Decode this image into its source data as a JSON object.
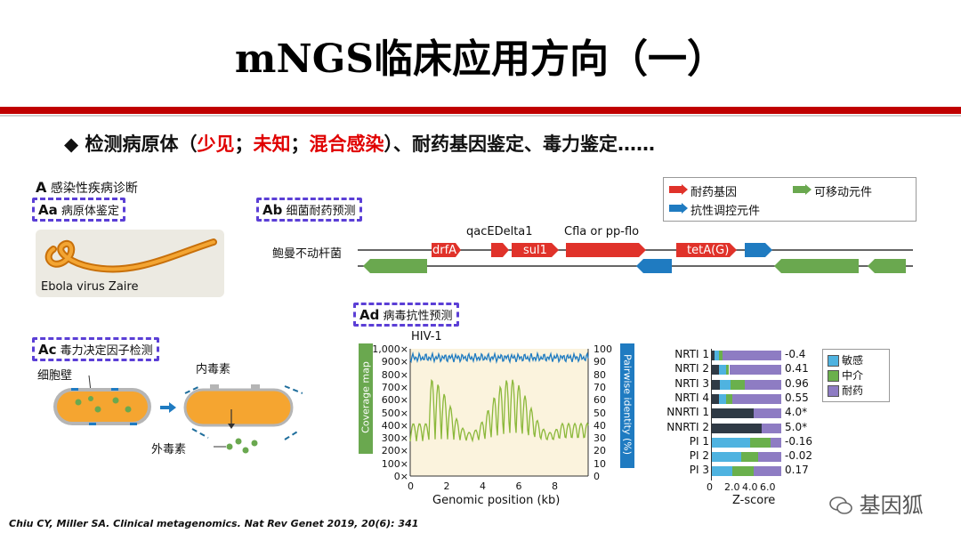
{
  "slide": {
    "title": "mNGS临床应用方向（一）",
    "bullet": {
      "symbol": "◆",
      "prefix": "检测病原体（",
      "rare": "少见",
      "sep1": "；",
      "unknown": "未知",
      "sep2": "；",
      "mixed": "混合感染",
      "suffix": "）、耐药基因鉴定、毒力鉴定……"
    },
    "citation": "Chiu CY, Miller SA. Clinical metagenomics. Nat Rev Genet 2019, 20(6): 341",
    "watermark": "基因狐"
  },
  "panelA": {
    "letter": "A",
    "label": "感染性疾病诊断"
  },
  "panelAa": {
    "letter": "Aa",
    "label": "病原体鉴定",
    "caption": "Ebola virus Zaire"
  },
  "panelAb": {
    "letter": "Ab",
    "label": "细菌耐药预测",
    "organism": "鲍曼不动杆菌",
    "genes": {
      "drfA": "drfA",
      "sul1": "sul1",
      "tetA": "tetA(G)",
      "qac": "qacEDelta1",
      "cfla": "Cfla or pp-flo"
    },
    "legend": [
      {
        "label": "耐药基因",
        "color": "#e0322a"
      },
      {
        "label": "可移动元件",
        "color": "#6aa84f"
      },
      {
        "label": "抗性调控元件",
        "color": "#1f7bc1"
      }
    ]
  },
  "panelAc": {
    "letter": "Ac",
    "label": "毒力决定因子检测",
    "cell_wall": "细胞壁",
    "endotoxin": "内毒素",
    "exotoxin": "外毒素"
  },
  "panelAd": {
    "letter": "Ad",
    "label": "病毒抗性预测",
    "virus": "HIV-1",
    "ylabel_left": "Coverage map",
    "ylabel_right": "Pairwise identity (%)",
    "xlabel": "Genomic position (kb)",
    "left_ticks": [
      "1,000",
      "900",
      "800",
      "700",
      "600",
      "500",
      "400",
      "300",
      "200",
      "100",
      "0"
    ],
    "right_ticks": [
      "100",
      "90",
      "80",
      "70",
      "60",
      "50",
      "40",
      "30",
      "20",
      "10",
      "0"
    ],
    "x_ticks": [
      "0",
      "2",
      "4",
      "6",
      "8"
    ]
  },
  "chart_data": {
    "type": "bar",
    "xlabel": "Z-score",
    "x_ticks": [
      "0",
      "2.0",
      "4.0",
      "6.0"
    ],
    "categories": [
      "NRTI 1",
      "NRTI 2",
      "NRTI 3",
      "NRTI 4",
      "NNRTI 1",
      "NNRTI 2",
      "PI 1",
      "PI 2",
      "PI 3"
    ],
    "zscores": [
      "-0.4",
      "0.41",
      "0.96",
      "0.55",
      "4.0*",
      "5.0*",
      "-0.16",
      "-0.02",
      "0.17"
    ],
    "legend": [
      {
        "name": "敏感",
        "color": "#4fb3e0"
      },
      {
        "name": "中介",
        "color": "#6ab04c"
      },
      {
        "name": "耐药",
        "color": "#8e7cc3"
      }
    ],
    "stacks": [
      {
        "dark": 0.04,
        "s": 0.06,
        "i": 0.06,
        "r": 0.84
      },
      {
        "dark": 0.1,
        "s": 0.1,
        "i": 0.05,
        "r": 0.75
      },
      {
        "dark": 0.12,
        "s": 0.15,
        "i": 0.2,
        "r": 0.53
      },
      {
        "dark": 0.1,
        "s": 0.1,
        "i": 0.1,
        "r": 0.7
      },
      {
        "dark": 0.6,
        "s": 0.0,
        "i": 0.0,
        "r": 0.4
      },
      {
        "dark": 0.72,
        "s": 0.0,
        "i": 0.0,
        "r": 0.28
      },
      {
        "dark": 0.0,
        "s": 0.55,
        "i": 0.3,
        "r": 0.15
      },
      {
        "dark": 0.0,
        "s": 0.42,
        "i": 0.25,
        "r": 0.33
      },
      {
        "dark": 0.0,
        "s": 0.3,
        "i": 0.3,
        "r": 0.4
      }
    ]
  }
}
